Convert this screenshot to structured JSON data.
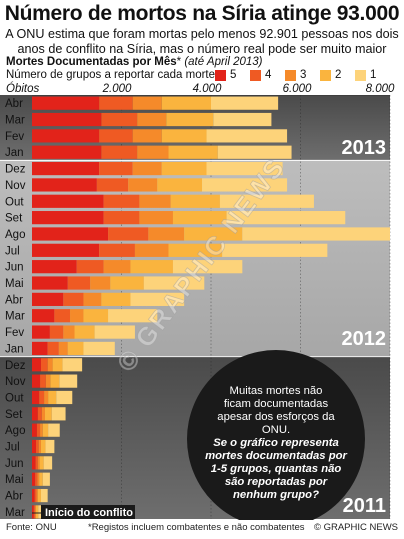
{
  "title": "Número de mortos na Síria atinge 93.000",
  "subtitle": "A ONU estima que foram mortas pelo menos 92.901 pessoas nos dois anos de conflito na Síria, mas o número real pode ser muito maior",
  "section": {
    "heading": "Mortes Documentadas por Mês",
    "asterisk": "*",
    "note": "(até April 2013)"
  },
  "legend": {
    "caption": "Número de grupos a reportar cada morte",
    "items": [
      {
        "label": "5",
        "color": "#e2231a"
      },
      {
        "label": "4",
        "color": "#ef5a23"
      },
      {
        "label": "3",
        "color": "#f58a2a"
      },
      {
        "label": "2",
        "color": "#fab43e"
      },
      {
        "label": "1",
        "color": "#fdd37a"
      }
    ]
  },
  "annotations": {
    "callout": "Muitas mortes não ficam documentadas apesar dos esforços da ONU.",
    "question": "Se o gráfico representa mortes documentadas por 1-5 grupos, quantas não são reportadas por nenhum grupo?",
    "conflict_start": "Início do conflito",
    "watermark": "© GRAPHIC NEWS"
  },
  "footer": {
    "source": "Fonte: ONU",
    "note": "*Registos incluem combatentes e não combatentes",
    "credit": "© GRAPHIC NEWS"
  },
  "chart_data": {
    "type": "bar",
    "orientation": "horizontal",
    "stacked": true,
    "xlabel": "Óbitos",
    "xlim": [
      0,
      8000
    ],
    "xticks": [
      "2.000",
      "4.000",
      "6.000",
      "8.000"
    ],
    "year_labels": [
      "2013",
      "2012",
      "2011"
    ],
    "categories": [
      "Abr",
      "Mar",
      "Fev",
      "Jan",
      "Dez",
      "Nov",
      "Out",
      "Set",
      "Ago",
      "Jul",
      "Jun",
      "Mai",
      "Abr",
      "Mar",
      "Fev",
      "Jan",
      "Dez",
      "Nov",
      "Out",
      "Set",
      "Ago",
      "Jul",
      "Jun",
      "Mai",
      "Abr",
      "Mar"
    ],
    "years": [
      "2013",
      "2013",
      "2013",
      "2013",
      "2012",
      "2012",
      "2012",
      "2012",
      "2012",
      "2012",
      "2012",
      "2012",
      "2012",
      "2012",
      "2012",
      "2012",
      "2011",
      "2011",
      "2011",
      "2011",
      "2011",
      "2011",
      "2011",
      "2011",
      "2011",
      "2011"
    ],
    "series": [
      {
        "name": "5",
        "color": "#e2231a",
        "values": [
          1500,
          1550,
          1500,
          1550,
          1500,
          1450,
          1600,
          1600,
          1700,
          1500,
          1000,
          800,
          700,
          500,
          400,
          350,
          200,
          180,
          160,
          130,
          110,
          90,
          80,
          70,
          60,
          40
        ]
      },
      {
        "name": "4",
        "color": "#ef5a23",
        "values": [
          750,
          800,
          750,
          800,
          750,
          700,
          800,
          800,
          900,
          800,
          600,
          500,
          450,
          350,
          300,
          250,
          150,
          130,
          110,
          90,
          70,
          60,
          50,
          50,
          40,
          30
        ]
      },
      {
        "name": "3",
        "color": "#f58a2a",
        "values": [
          650,
          650,
          650,
          700,
          650,
          650,
          700,
          750,
          800,
          750,
          600,
          450,
          400,
          300,
          250,
          200,
          110,
          100,
          90,
          70,
          60,
          50,
          40,
          40,
          30,
          20
        ]
      },
      {
        "name": "2",
        "color": "#fab43e",
        "values": [
          1100,
          1050,
          1000,
          1100,
          1000,
          1000,
          1100,
          1200,
          1300,
          1200,
          950,
          750,
          650,
          550,
          450,
          350,
          220,
          200,
          180,
          150,
          120,
          100,
          90,
          80,
          70,
          50
        ]
      },
      {
        "name": "1",
        "color": "#fdd37a",
        "values": [
          1500,
          1300,
          1800,
          1650,
          1700,
          1900,
          2100,
          2650,
          3300,
          2350,
          1550,
          1350,
          1200,
          1100,
          900,
          700,
          440,
          400,
          360,
          310,
          260,
          200,
          190,
          160,
          150,
          110
        ]
      }
    ]
  }
}
